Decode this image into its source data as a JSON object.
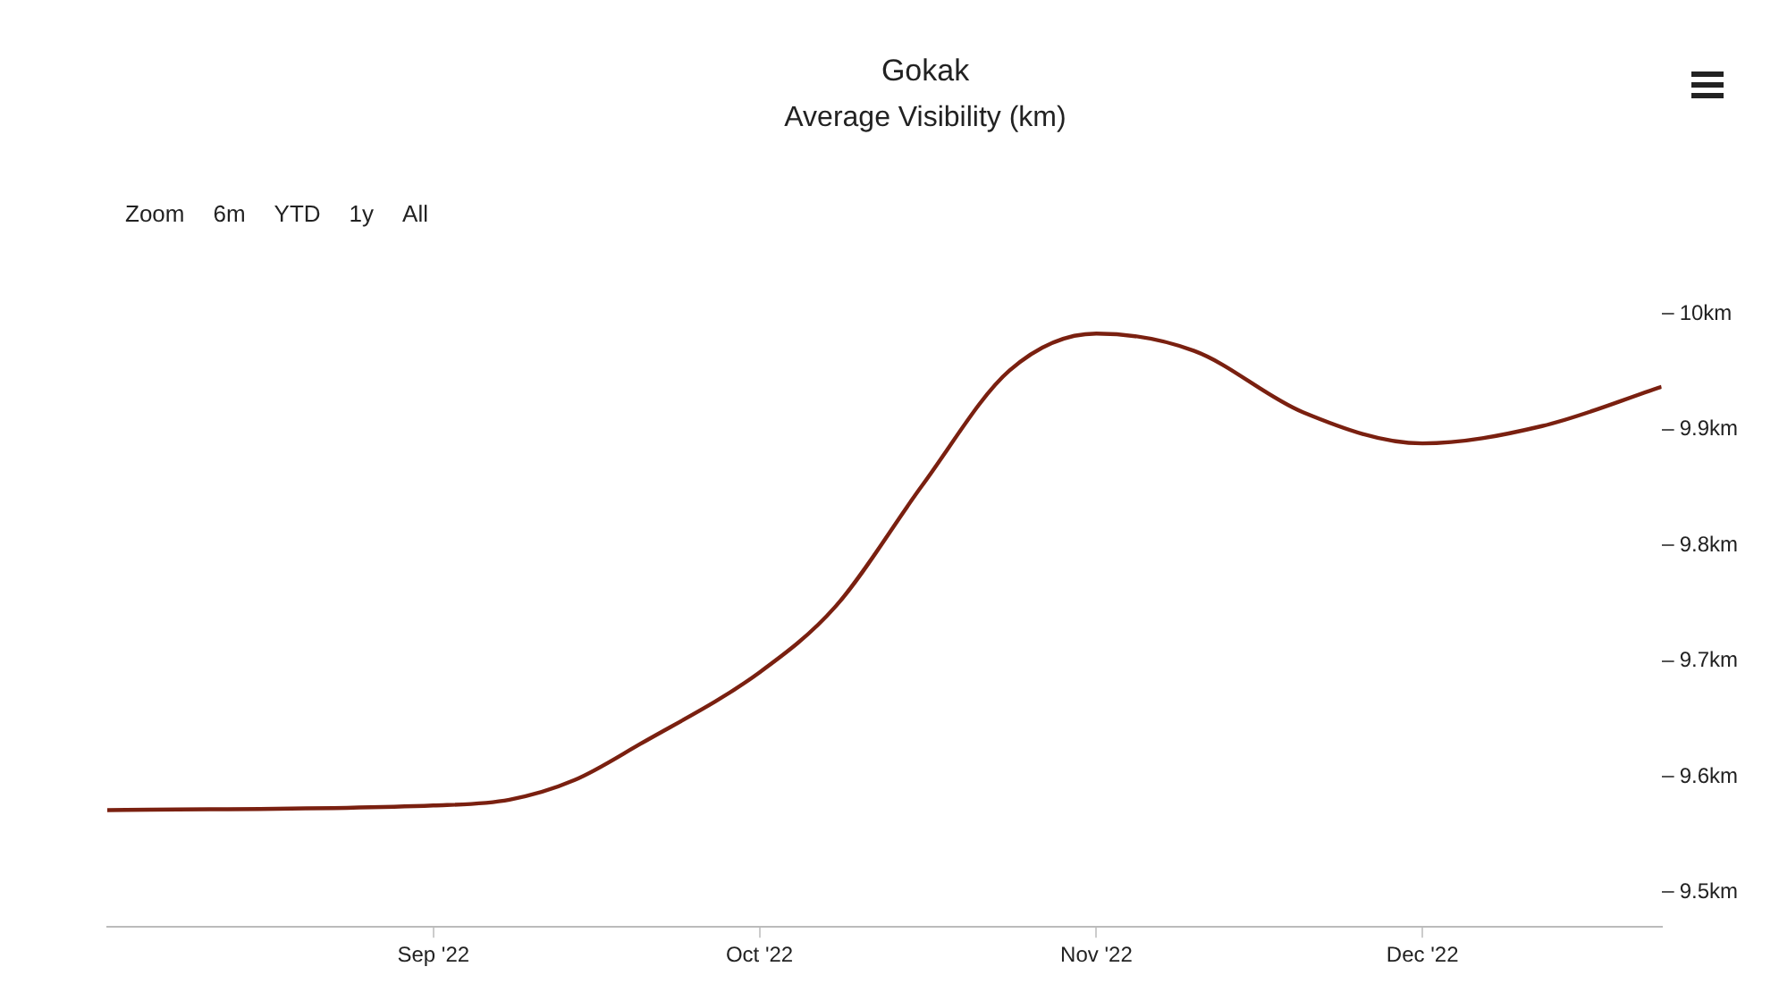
{
  "chart_data": {
    "type": "line",
    "title": "Gokak",
    "subtitle": "Average Visibility (km)",
    "annotations": [
      "Zoom",
      "6m",
      "YTD",
      "1y",
      "All"
    ],
    "x": [
      "2022-08-02",
      "2022-09-01",
      "2022-09-08",
      "2022-09-14",
      "2022-09-20",
      "2022-10-01",
      "2022-10-08",
      "2022-10-16",
      "2022-10-24",
      "2022-11-01",
      "2022-11-10",
      "2022-11-20",
      "2022-12-01",
      "2022-12-12",
      "2022-12-23"
    ],
    "series": [
      {
        "color": "#7a2010",
        "values": [
          9.571,
          9.575,
          9.58,
          9.597,
          9.628,
          9.69,
          9.747,
          9.852,
          9.951,
          9.983,
          9.968,
          9.915,
          9.888,
          9.903,
          9.937
        ]
      }
    ],
    "xlim": [
      "2022-08-02",
      "2022-12-23"
    ],
    "xticks": [
      {
        "value": "2022-09-01",
        "label": "Sep '22"
      },
      {
        "value": "2022-10-01",
        "label": "Oct '22"
      },
      {
        "value": "2022-11-01",
        "label": "Nov '22"
      },
      {
        "value": "2022-12-01",
        "label": "Dec '22"
      }
    ],
    "ylim": [
      9.47,
      10
    ],
    "yticks": [
      {
        "value": 9.5,
        "label": "9.5km"
      },
      {
        "value": 9.6,
        "label": "9.6km"
      },
      {
        "value": 9.7,
        "label": "9.7km"
      },
      {
        "value": 9.8,
        "label": "9.8km"
      },
      {
        "value": 9.9,
        "label": "9.9km"
      },
      {
        "value": 10,
        "label": "10km"
      }
    ],
    "grid": false,
    "legend": false,
    "marker": "none",
    "line_style": "solid"
  }
}
